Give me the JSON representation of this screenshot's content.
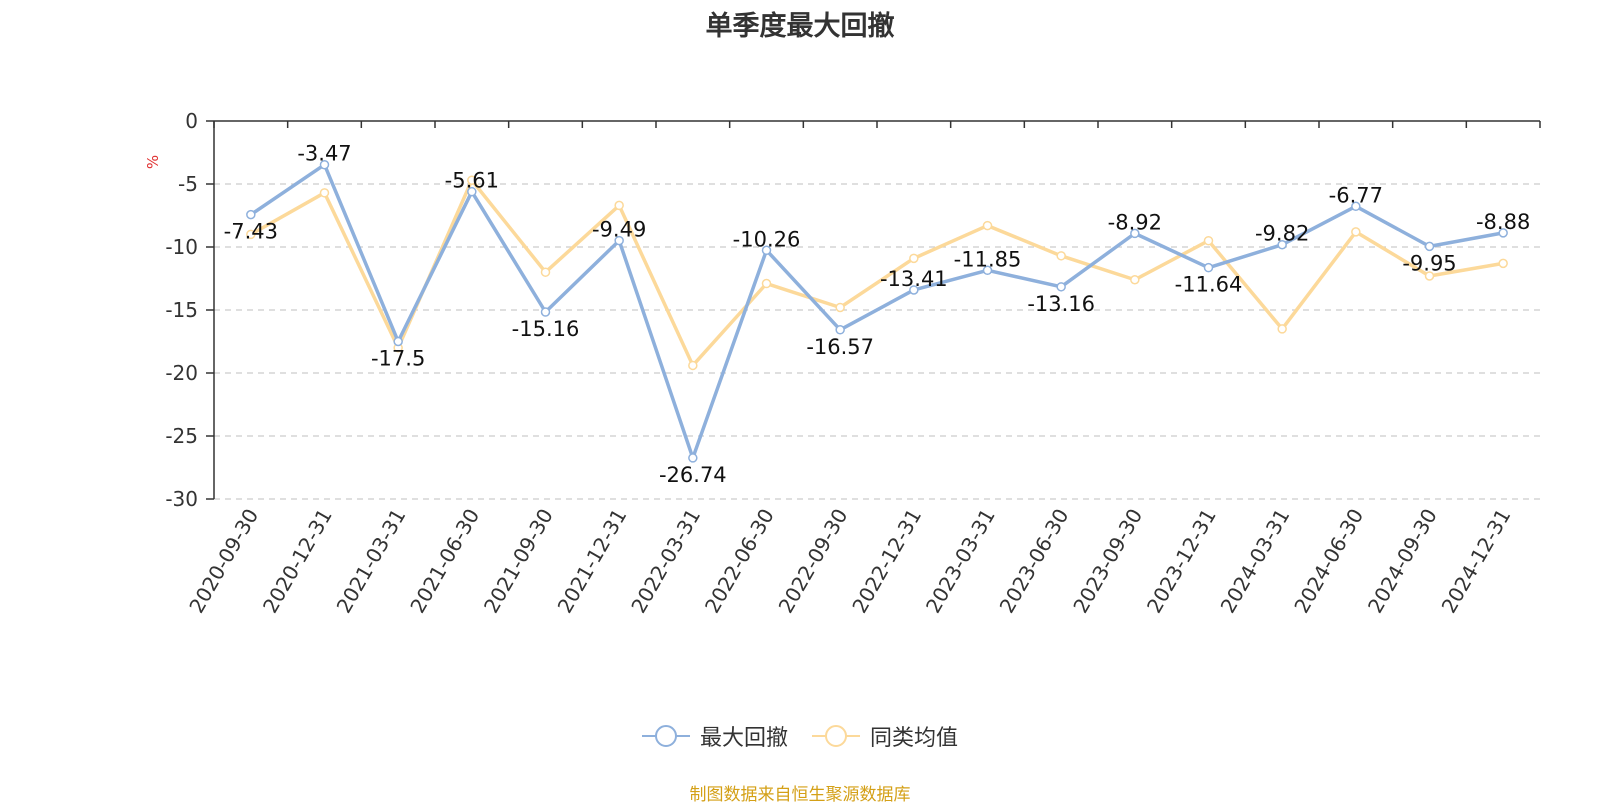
{
  "chart_data": {
    "type": "line",
    "title": "单季度最大回撤",
    "ylabel": "%",
    "ylim": [
      -30,
      0
    ],
    "yticks": [
      0,
      -5,
      -10,
      -15,
      -20,
      -25,
      -30
    ],
    "categories": [
      "2020-09-30",
      "2020-12-31",
      "2021-03-31",
      "2021-06-30",
      "2021-09-30",
      "2021-12-31",
      "2022-03-31",
      "2022-06-30",
      "2022-09-30",
      "2022-12-31",
      "2023-03-31",
      "2023-06-30",
      "2023-09-30",
      "2023-12-31",
      "2024-03-31",
      "2024-06-30",
      "2024-09-30",
      "2024-12-31"
    ],
    "series": [
      {
        "name": "最大回撤",
        "color": "#8eb0dc",
        "values": [
          -7.43,
          -3.47,
          -17.5,
          -5.61,
          -15.16,
          -9.49,
          -26.74,
          -10.26,
          -16.57,
          -13.41,
          -11.85,
          -13.16,
          -8.92,
          -11.64,
          -9.82,
          -6.77,
          -9.95,
          -8.88
        ],
        "labels": [
          "-7.43",
          "-3.47",
          "-17.5",
          "-5.61",
          "-15.16",
          "-9.49",
          "-26.74",
          "-10.26",
          "-16.57",
          "-13.41",
          "-11.85",
          "-13.16",
          "-8.92",
          "-11.64",
          "-9.82",
          "-6.77",
          "-9.95",
          "-8.88"
        ]
      },
      {
        "name": "同类均值",
        "color": "#fcd99a",
        "values": [
          -9.0,
          -5.7,
          -18.0,
          -4.7,
          -12.0,
          -6.7,
          -19.4,
          -12.9,
          -14.8,
          -10.9,
          -8.3,
          -10.7,
          -12.6,
          -9.5,
          -16.5,
          -8.8,
          -12.3,
          -11.3
        ]
      }
    ],
    "grid": true,
    "legend_position": "bottom"
  },
  "source_text": "制图数据来自恒生聚源数据库",
  "colors": {
    "source": "#d4a017",
    "ylabel": "#e03030",
    "axis": "#333333",
    "grid": "#cccccc"
  }
}
